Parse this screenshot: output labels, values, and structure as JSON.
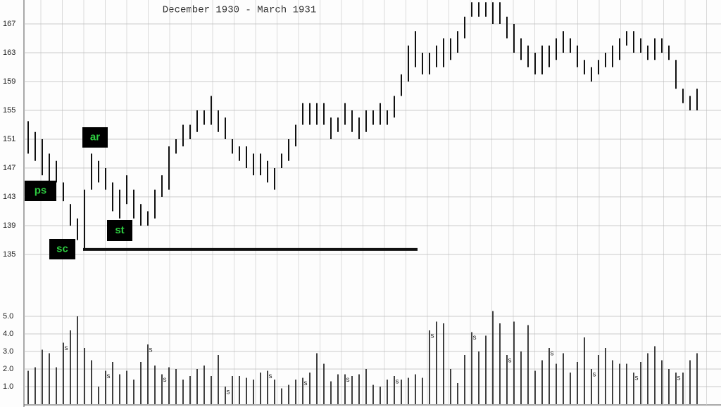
{
  "chart_data": {
    "type": "hilo",
    "title": "December 1930 - March 1931",
    "high": [
      153.5,
      152,
      151,
      149,
      148,
      145,
      142,
      140,
      144,
      149,
      148,
      147,
      145,
      144,
      146,
      144,
      142,
      141,
      144,
      146,
      150,
      151,
      153,
      153,
      155,
      155,
      157,
      155,
      154,
      151,
      150,
      150,
      149,
      149,
      148,
      147,
      149,
      151,
      153,
      156,
      156,
      156,
      156,
      154,
      154,
      156,
      155,
      154,
      155,
      155,
      156,
      155,
      157,
      160,
      164,
      166,
      163,
      163,
      164,
      165,
      165,
      166,
      168,
      170,
      170,
      170,
      170,
      170,
      168,
      167,
      165,
      164,
      163,
      164,
      164,
      165,
      166,
      165,
      164,
      162,
      161,
      162,
      163,
      164,
      165,
      166,
      166,
      165,
      164,
      165,
      165,
      164,
      162,
      158,
      157,
      158
    ],
    "low": [
      149,
      148,
      146,
      145,
      145,
      142.4,
      139,
      137,
      135.7,
      144,
      145,
      144,
      141,
      140,
      142,
      140,
      139,
      139,
      140,
      143,
      144,
      149,
      150,
      151,
      152,
      153,
      153,
      152,
      151,
      149,
      148,
      147,
      146,
      146,
      145,
      144,
      147,
      148,
      150,
      153,
      153,
      153,
      153,
      151,
      152,
      153,
      152,
      151,
      152,
      153,
      153,
      153,
      154,
      157,
      159,
      161,
      160,
      160,
      161,
      161,
      162,
      163,
      165,
      168,
      168,
      168,
      167,
      167,
      165,
      163,
      162,
      161,
      160,
      160,
      161,
      162,
      163,
      163,
      161,
      160,
      159,
      160,
      161,
      161,
      162,
      164,
      163,
      163,
      162,
      162,
      163,
      162,
      158,
      156,
      155,
      155
    ],
    "ylim": [
      131,
      170
    ],
    "yticks": [
      135,
      139,
      143,
      147,
      151,
      155,
      159,
      163,
      167
    ],
    "volume": [
      1.9,
      2.1,
      3.1,
      2.9,
      2.1,
      3.5,
      4.2,
      5.0,
      3.2,
      2.5,
      1.0,
      1.9,
      2.4,
      1.7,
      1.9,
      1.4,
      2.4,
      3.4,
      2.2,
      1.7,
      2.1,
      2.0,
      1.4,
      1.6,
      2.0,
      2.2,
      1.6,
      2.8,
      1.0,
      1.6,
      1.6,
      1.5,
      1.4,
      1.8,
      1.9,
      1.4,
      0.9,
      1.1,
      1.4,
      1.5,
      1.8,
      2.9,
      2.3,
      1.3,
      1.7,
      1.7,
      1.6,
      1.7,
      2.0,
      1.1,
      1.0,
      1.4,
      1.6,
      1.4,
      1.5,
      1.7,
      1.5,
      4.2,
      4.7,
      4.6,
      2.0,
      1.2,
      2.8,
      4.1,
      3.0,
      3.9,
      5.3,
      4.6,
      2.8,
      4.7,
      3.0,
      4.5,
      1.9,
      2.5,
      3.2,
      2.3,
      2.9,
      1.8,
      2.4,
      3.8,
      2.0,
      2.8,
      3.2,
      2.5,
      2.3,
      2.3,
      1.8,
      2.4,
      2.9,
      3.3,
      2.5,
      2.0,
      1.8,
      1.8,
      2.5,
      2.9
    ],
    "vlim": [
      0,
      5.5
    ],
    "vticks": [
      {
        "value": 1,
        "label": "1.0"
      },
      {
        "value": 2,
        "label": "2.0"
      },
      {
        "value": 3,
        "label": "3.0"
      },
      {
        "value": 4,
        "label": "4.0"
      },
      {
        "value": 5,
        "label": "5.0"
      }
    ],
    "volume_marker": "s",
    "volume_marker_bars": [
      5,
      11,
      17,
      19,
      28,
      34,
      39,
      45,
      52,
      57,
      63,
      68,
      74,
      80,
      86,
      92
    ],
    "support_line": {
      "value": 135.7,
      "from_bar": 8,
      "to_bar": 55
    },
    "annotations": [
      {
        "text": "ps",
        "bar": 0
      },
      {
        "text": "ar",
        "bar": 9
      },
      {
        "text": "sc",
        "bar": 8
      },
      {
        "text": "st",
        "bar": 13
      }
    ],
    "grid": true
  }
}
